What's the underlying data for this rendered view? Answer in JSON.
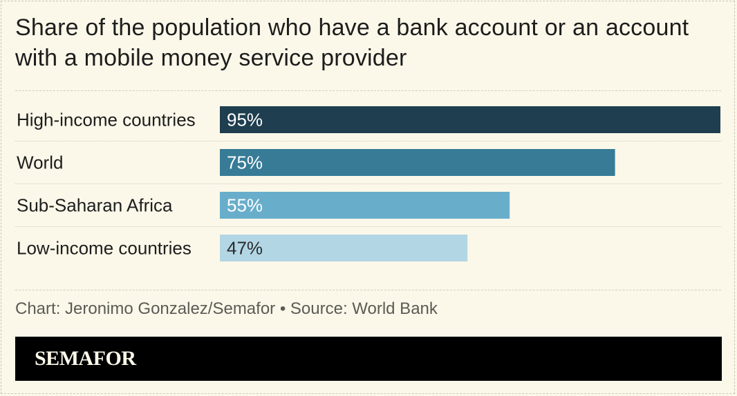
{
  "header": {
    "title": "Share of the population who have a bank account or an account with a mobile money service provider"
  },
  "chart_data": {
    "type": "bar",
    "orientation": "horizontal",
    "categories": [
      "High-income countries",
      "World",
      "Sub-Saharan Africa",
      "Low-income countries"
    ],
    "values": [
      95,
      75,
      55,
      47
    ],
    "value_labels": [
      "95%",
      "75%",
      "55%",
      "47%"
    ],
    "unit": "%",
    "xlim": [
      0,
      95
    ],
    "grid": false,
    "colors": [
      "#1f3e4f",
      "#377b97",
      "#68aecb",
      "#b3d6e5"
    ],
    "label_colors": [
      "#ffffff",
      "#ffffff",
      "#ffffff",
      "#2a2a2a"
    ]
  },
  "footer": {
    "source": "Chart: Jeronimo Gonzalez/Semafor • Source: World Bank",
    "brand": "SEMAFOR"
  }
}
